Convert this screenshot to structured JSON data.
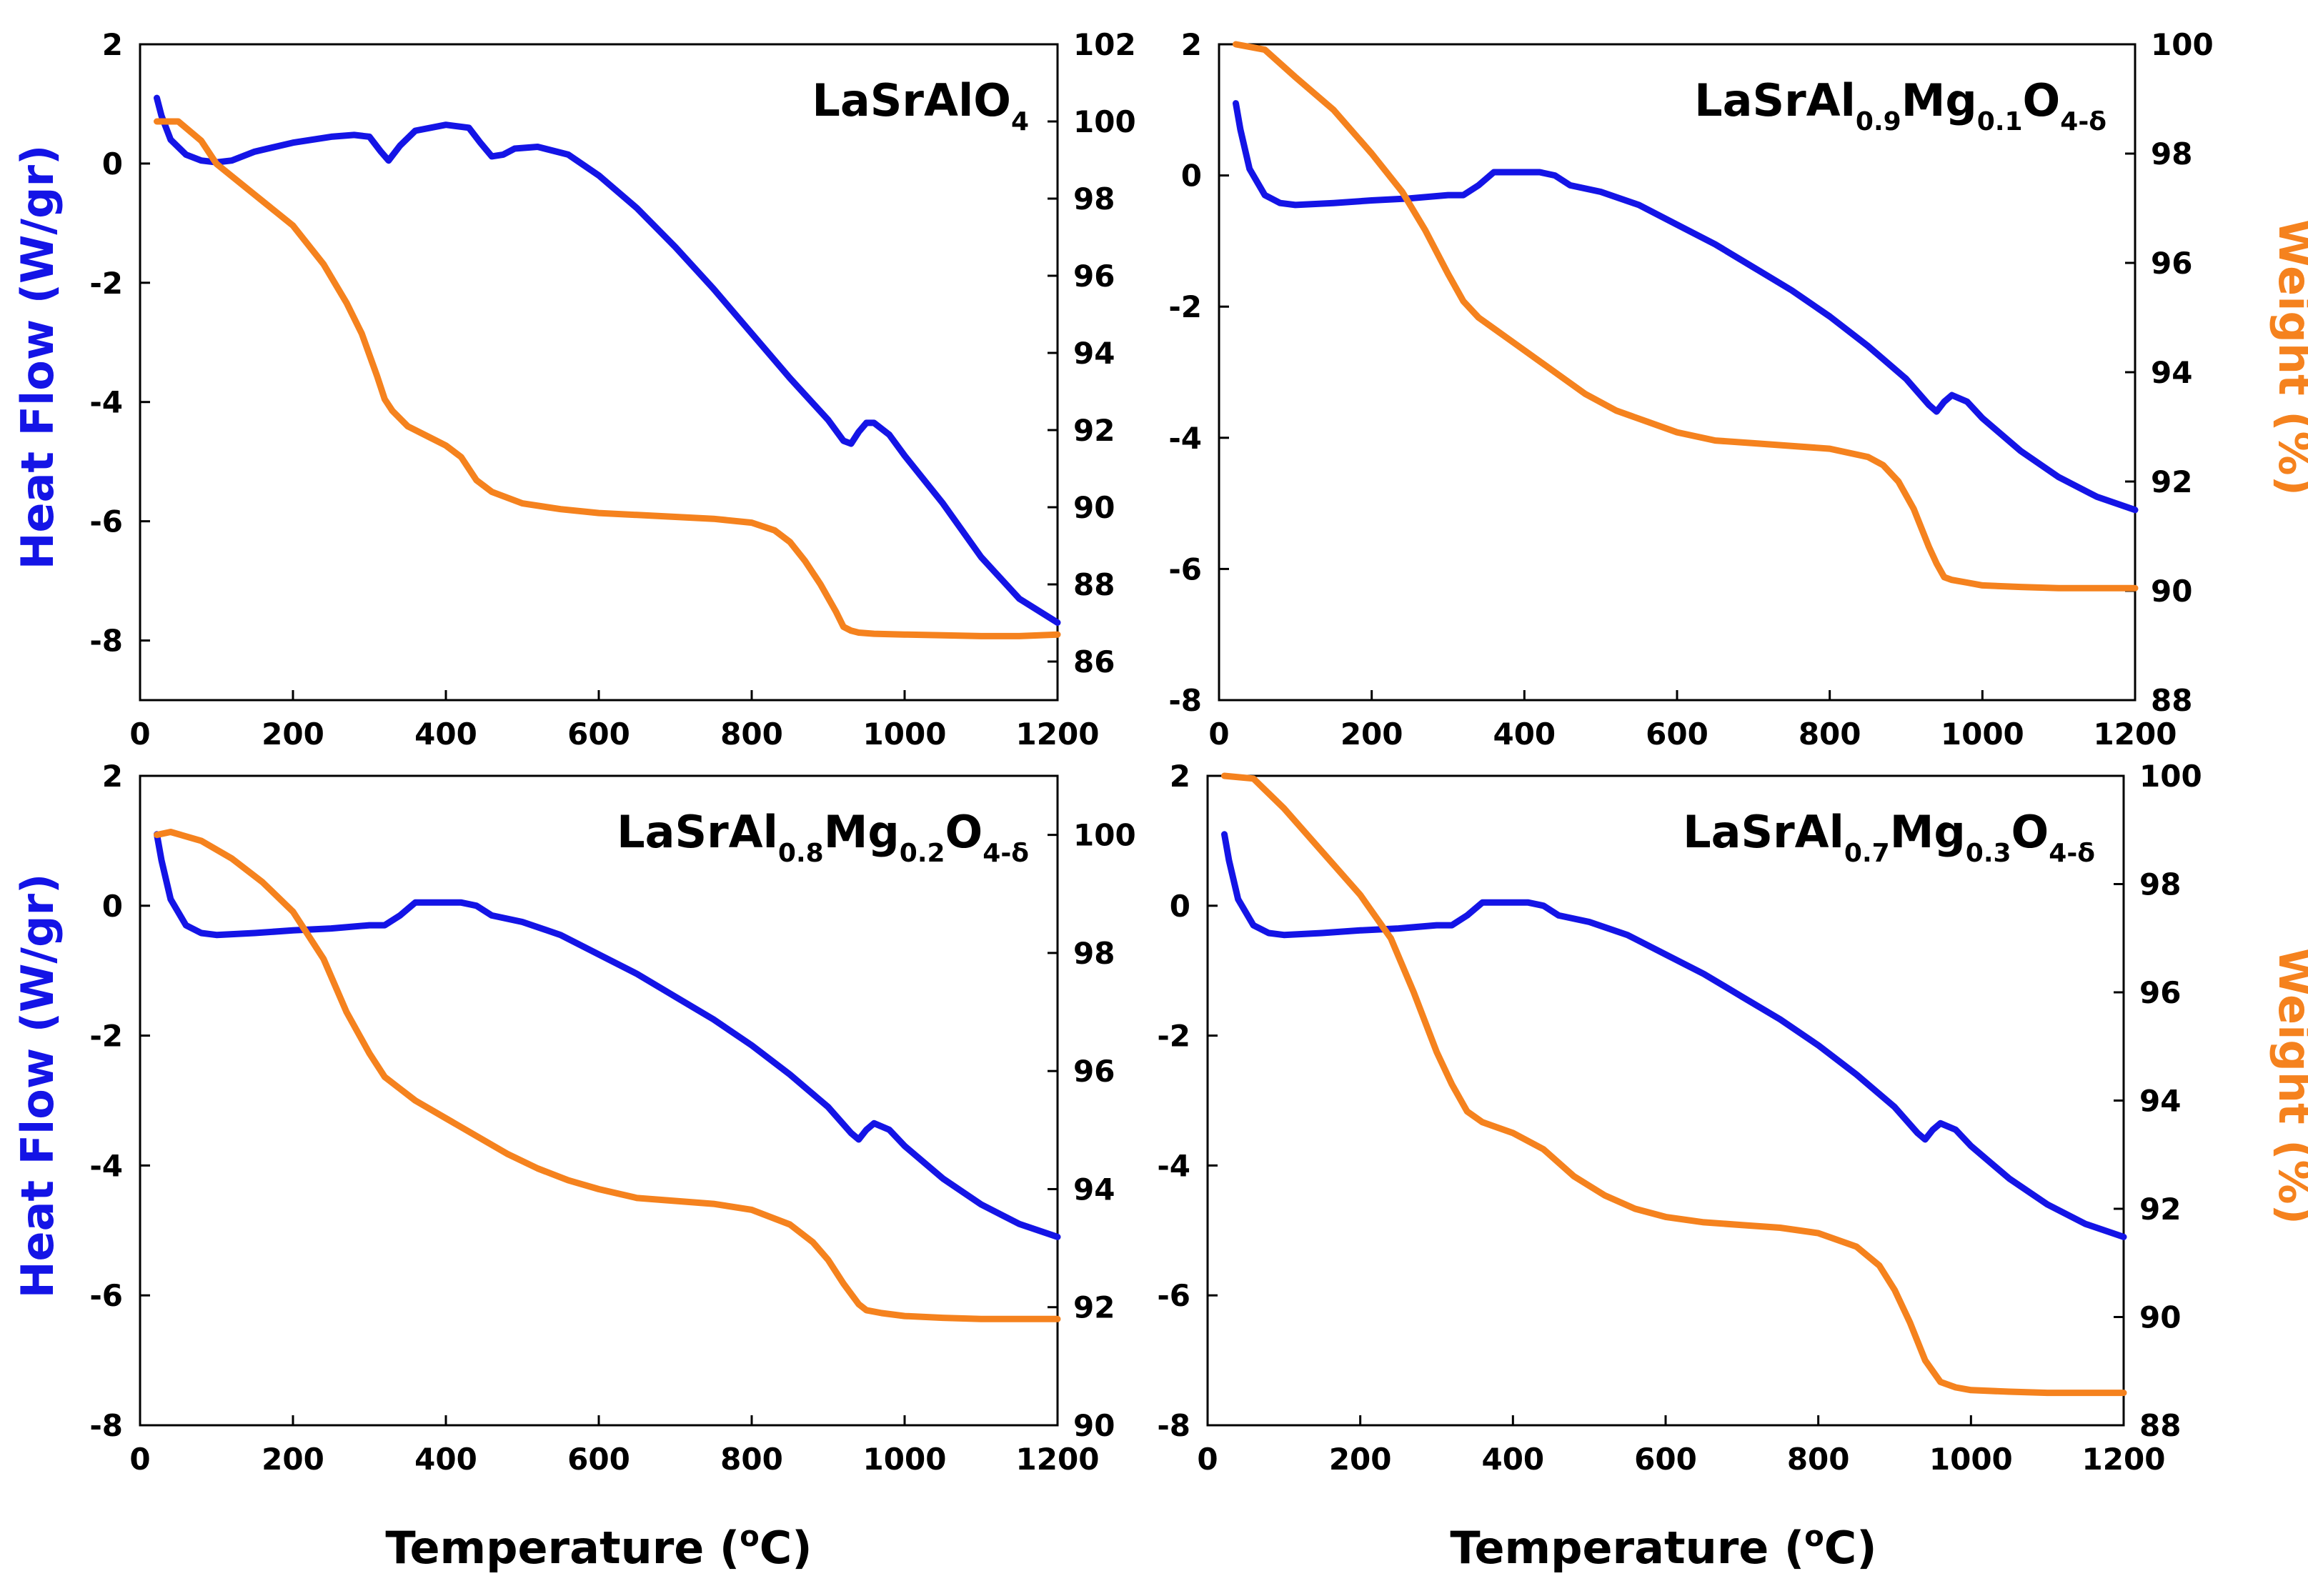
{
  "colors": {
    "heat_flow": "#1414e6",
    "weight": "#f5821e",
    "axis": "#000000"
  },
  "figure": {
    "x_axis_title": "Temperature (",
    "x_axis_title_sup": "o",
    "x_axis_title_end": "C)",
    "left_axis_title": "Heat Flow (W/gr)",
    "right_axis_title": "Weight (%)"
  },
  "chart_data": [
    {
      "type": "line",
      "id": "p1",
      "title": {
        "base": "LaSrAlO",
        "parts": [
          [
            "4",
            "sub"
          ]
        ]
      },
      "xlabel": "",
      "ylabel": "Heat Flow (W/gr)",
      "y2label": "",
      "xlim": [
        0,
        1200
      ],
      "ylim": [
        -9,
        2
      ],
      "y2lim": [
        85,
        102
      ],
      "xticks": [
        "0",
        "200",
        "400",
        "600",
        "800",
        "1000",
        "1200"
      ],
      "yticks": [
        "2",
        "0",
        "-2",
        "-4",
        "-6",
        "-8"
      ],
      "y2ticks": [
        "102",
        "100",
        "98",
        "96",
        "94",
        "92",
        "90",
        "88",
        "86"
      ],
      "series": [
        {
          "name": "Heat Flow",
          "axis": "left",
          "x": [
            22,
            28,
            40,
            60,
            80,
            100,
            120,
            150,
            200,
            250,
            280,
            300,
            315,
            325,
            340,
            360,
            400,
            430,
            445,
            460,
            475,
            490,
            520,
            560,
            600,
            650,
            700,
            750,
            800,
            850,
            900,
            920,
            930,
            940,
            950,
            960,
            980,
            1000,
            1050,
            1100,
            1150,
            1200
          ],
          "y": [
            1.1,
            0.8,
            0.4,
            0.15,
            0.05,
            0.02,
            0.05,
            0.2,
            0.35,
            0.45,
            0.48,
            0.45,
            0.2,
            0.05,
            0.3,
            0.55,
            0.65,
            0.6,
            0.35,
            0.12,
            0.15,
            0.25,
            0.28,
            0.15,
            -0.2,
            -0.75,
            -1.4,
            -2.1,
            -2.85,
            -3.6,
            -4.3,
            -4.65,
            -4.7,
            -4.5,
            -4.35,
            -4.35,
            -4.55,
            -4.9,
            -5.7,
            -6.6,
            -7.3,
            -7.7
          ]
        },
        {
          "name": "Weight",
          "axis": "right",
          "x": [
            22,
            50,
            80,
            100,
            150,
            200,
            240,
            270,
            290,
            310,
            320,
            330,
            350,
            380,
            400,
            420,
            440,
            460,
            500,
            550,
            600,
            650,
            700,
            750,
            800,
            830,
            850,
            870,
            890,
            910,
            920,
            930,
            940,
            960,
            1000,
            1050,
            1100,
            1150,
            1200
          ],
          "y": [
            100.0,
            100.0,
            99.5,
            98.9,
            98.1,
            97.3,
            96.3,
            95.3,
            94.5,
            93.4,
            92.8,
            92.5,
            92.1,
            91.8,
            91.6,
            91.3,
            90.7,
            90.4,
            90.1,
            89.95,
            89.85,
            89.8,
            89.75,
            89.7,
            89.6,
            89.4,
            89.1,
            88.6,
            88.0,
            87.3,
            86.9,
            86.8,
            86.75,
            86.72,
            86.7,
            86.68,
            86.66,
            86.66,
            86.7
          ]
        }
      ]
    },
    {
      "type": "line",
      "id": "p2",
      "title": {
        "base": "LaSrAl",
        "parts": [
          [
            "0.9",
            "sub"
          ],
          [
            "Mg",
            ""
          ],
          [
            "0.1",
            "sub"
          ],
          [
            "O",
            ""
          ],
          [
            "4-δ",
            "sub"
          ]
        ]
      },
      "xlabel": "",
      "ylabel": "",
      "y2label": "Weight (%)",
      "xlim": [
        0,
        1200
      ],
      "ylim": [
        -8,
        2
      ],
      "y2lim": [
        88,
        100
      ],
      "xticks": [
        "0",
        "200",
        "400",
        "600",
        "800",
        "1000",
        "1200"
      ],
      "yticks": [
        "2",
        "0",
        "-2",
        "-4",
        "-6",
        "-8"
      ],
      "y2ticks": [
        "100",
        "98",
        "96",
        "94",
        "92",
        "90",
        "88"
      ],
      "series": [
        {
          "name": "Heat Flow",
          "axis": "left",
          "x": [
            22,
            28,
            40,
            60,
            80,
            100,
            150,
            200,
            250,
            300,
            320,
            340,
            360,
            380,
            420,
            440,
            460,
            500,
            550,
            600,
            650,
            700,
            750,
            800,
            850,
            900,
            930,
            940,
            950,
            960,
            980,
            1000,
            1050,
            1100,
            1150,
            1200
          ],
          "y": [
            1.1,
            0.7,
            0.1,
            -0.3,
            -0.42,
            -0.45,
            -0.42,
            -0.38,
            -0.35,
            -0.3,
            -0.3,
            -0.15,
            0.05,
            0.05,
            0.05,
            0.0,
            -0.15,
            -0.25,
            -0.45,
            -0.75,
            -1.05,
            -1.4,
            -1.75,
            -2.15,
            -2.6,
            -3.1,
            -3.5,
            -3.6,
            -3.45,
            -3.35,
            -3.45,
            -3.7,
            -4.2,
            -4.6,
            -4.9,
            -5.1
          ]
        },
        {
          "name": "Weight",
          "axis": "right",
          "x": [
            22,
            60,
            100,
            150,
            200,
            240,
            270,
            300,
            320,
            340,
            360,
            380,
            400,
            440,
            480,
            520,
            560,
            600,
            650,
            700,
            750,
            800,
            850,
            870,
            890,
            910,
            930,
            940,
            950,
            960,
            980,
            1000,
            1050,
            1100,
            1150,
            1200
          ],
          "y": [
            100.0,
            99.9,
            99.4,
            98.8,
            98.0,
            97.3,
            96.6,
            95.8,
            95.3,
            95.0,
            94.8,
            94.6,
            94.4,
            94.0,
            93.6,
            93.3,
            93.1,
            92.9,
            92.75,
            92.7,
            92.65,
            92.6,
            92.45,
            92.3,
            92.0,
            91.5,
            90.8,
            90.5,
            90.25,
            90.2,
            90.15,
            90.1,
            90.07,
            90.05,
            90.05,
            90.05
          ]
        }
      ]
    },
    {
      "type": "line",
      "id": "p3",
      "title": {
        "base": "LaSrAl",
        "parts": [
          [
            "0.8",
            "sub"
          ],
          [
            "Mg",
            ""
          ],
          [
            "0.2",
            "sub"
          ],
          [
            "O",
            ""
          ],
          [
            "4-δ",
            "sub"
          ]
        ]
      },
      "xlabel": "Temperature (oC)",
      "ylabel": "Heat Flow (W/gr)",
      "y2label": "",
      "xlim": [
        0,
        1200
      ],
      "ylim": [
        -8,
        2
      ],
      "y2lim": [
        90,
        101
      ],
      "xticks": [
        "0",
        "200",
        "400",
        "600",
        "800",
        "1000",
        "1200"
      ],
      "yticks": [
        "2",
        "0",
        "-2",
        "-4",
        "-6",
        "-8"
      ],
      "y2ticks": [
        "100",
        "98",
        "96",
        "94",
        "92",
        "90"
      ],
      "series": [
        {
          "name": "Heat Flow",
          "axis": "left",
          "x": [
            22,
            28,
            40,
            60,
            80,
            100,
            150,
            200,
            250,
            300,
            320,
            340,
            360,
            380,
            420,
            440,
            460,
            500,
            550,
            600,
            650,
            700,
            750,
            800,
            850,
            900,
            930,
            940,
            950,
            960,
            980,
            1000,
            1050,
            1100,
            1150,
            1200
          ],
          "y": [
            1.1,
            0.7,
            0.1,
            -0.3,
            -0.42,
            -0.45,
            -0.42,
            -0.38,
            -0.35,
            -0.3,
            -0.3,
            -0.15,
            0.05,
            0.05,
            0.05,
            0.0,
            -0.15,
            -0.25,
            -0.45,
            -0.75,
            -1.05,
            -1.4,
            -1.75,
            -2.15,
            -2.6,
            -3.1,
            -3.5,
            -3.6,
            -3.45,
            -3.35,
            -3.45,
            -3.7,
            -4.2,
            -4.6,
            -4.9,
            -5.1
          ]
        },
        {
          "name": "Weight",
          "axis": "right",
          "x": [
            22,
            40,
            80,
            120,
            160,
            200,
            240,
            270,
            300,
            320,
            340,
            360,
            400,
            440,
            480,
            520,
            560,
            600,
            650,
            700,
            750,
            800,
            850,
            880,
            900,
            920,
            940,
            950,
            970,
            1000,
            1050,
            1100,
            1150,
            1200
          ],
          "y": [
            100.0,
            100.05,
            99.9,
            99.6,
            99.2,
            98.7,
            97.9,
            97.0,
            96.3,
            95.9,
            95.7,
            95.5,
            95.2,
            94.9,
            94.6,
            94.35,
            94.15,
            94.0,
            93.85,
            93.8,
            93.75,
            93.65,
            93.4,
            93.1,
            92.8,
            92.4,
            92.05,
            91.95,
            91.9,
            91.85,
            91.82,
            91.8,
            91.8,
            91.8
          ]
        }
      ]
    },
    {
      "type": "line",
      "id": "p4",
      "title": {
        "base": "LaSrAl",
        "parts": [
          [
            "0.7",
            "sub"
          ],
          [
            "Mg",
            ""
          ],
          [
            "0.3",
            "sub"
          ],
          [
            "O",
            ""
          ],
          [
            "4-δ",
            "sub"
          ]
        ]
      },
      "xlabel": "Temperature (oC)",
      "ylabel": "",
      "y2label": "Weight (%)",
      "xlim": [
        0,
        1200
      ],
      "ylim": [
        -8,
        2
      ],
      "y2lim": [
        88,
        100
      ],
      "xticks": [
        "0",
        "200",
        "400",
        "600",
        "800",
        "1000",
        "1200"
      ],
      "yticks": [
        "2",
        "0",
        "-2",
        "-4",
        "-6",
        "-8"
      ],
      "y2ticks": [
        "100",
        "98",
        "96",
        "94",
        "92",
        "90",
        "88"
      ],
      "series": [
        {
          "name": "Heat Flow",
          "axis": "left",
          "x": [
            22,
            28,
            40,
            60,
            80,
            100,
            150,
            200,
            250,
            300,
            320,
            340,
            360,
            380,
            420,
            440,
            460,
            500,
            550,
            600,
            650,
            700,
            750,
            800,
            850,
            900,
            930,
            940,
            950,
            960,
            980,
            1000,
            1050,
            1100,
            1150,
            1200
          ],
          "y": [
            1.1,
            0.7,
            0.1,
            -0.3,
            -0.42,
            -0.45,
            -0.42,
            -0.38,
            -0.35,
            -0.3,
            -0.3,
            -0.15,
            0.05,
            0.05,
            0.05,
            0.0,
            -0.15,
            -0.25,
            -0.45,
            -0.75,
            -1.05,
            -1.4,
            -1.75,
            -2.15,
            -2.6,
            -3.1,
            -3.5,
            -3.6,
            -3.45,
            -3.35,
            -3.45,
            -3.7,
            -4.2,
            -4.6,
            -4.9,
            -5.1
          ]
        },
        {
          "name": "Weight",
          "axis": "right",
          "x": [
            22,
            60,
            100,
            150,
            200,
            240,
            270,
            300,
            320,
            340,
            360,
            380,
            400,
            440,
            480,
            520,
            560,
            600,
            650,
            700,
            750,
            800,
            850,
            880,
            900,
            920,
            940,
            960,
            980,
            1000,
            1050,
            1100,
            1150,
            1200
          ],
          "y": [
            100.0,
            99.95,
            99.4,
            98.6,
            97.8,
            97.0,
            96.0,
            94.9,
            94.3,
            93.8,
            93.6,
            93.5,
            93.4,
            93.1,
            92.6,
            92.25,
            92.0,
            91.85,
            91.75,
            91.7,
            91.65,
            91.55,
            91.3,
            90.95,
            90.5,
            89.9,
            89.2,
            88.8,
            88.7,
            88.65,
            88.62,
            88.6,
            88.6,
            88.6
          ]
        }
      ]
    }
  ]
}
